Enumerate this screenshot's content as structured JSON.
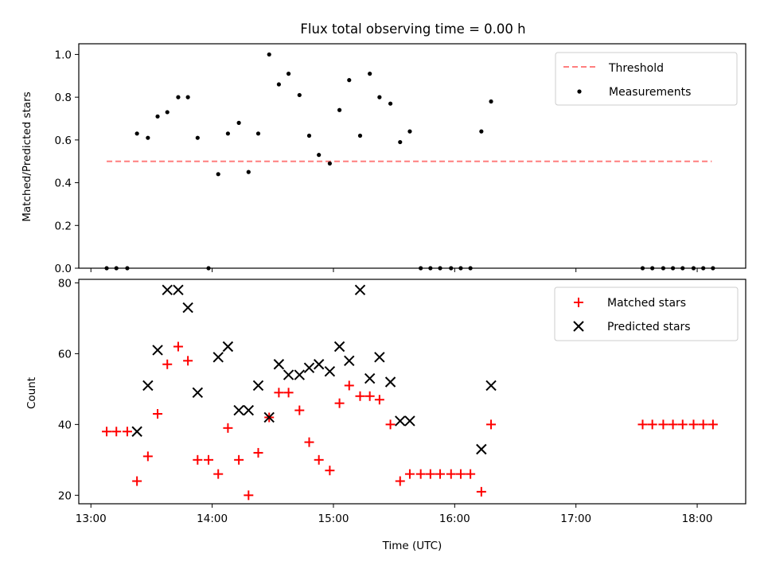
{
  "figure": {
    "title": "Flux total observing time = 0.00 h",
    "xlabel": "Time (UTC)",
    "x_ticks": [
      "13:00",
      "14:00",
      "15:00",
      "16:00",
      "17:00",
      "18:00"
    ]
  },
  "colors": {
    "threshold": "#ff7f7f",
    "measurement": "#000000",
    "matched": "#ff0000",
    "predicted": "#000000"
  },
  "chart_data": [
    {
      "type": "scatter",
      "panel": "top",
      "title": "Flux total observing time = 0.00 h",
      "ylabel": "Matched/Predicted stars",
      "xlabel": "",
      "x_unit": "hours UTC",
      "xlim": [
        12.9,
        18.4
      ],
      "ylim": [
        0,
        1.05
      ],
      "y_ticks": [
        "0.0",
        "0.2",
        "0.4",
        "0.6",
        "0.8",
        "1.0"
      ],
      "legend_position": "top-right",
      "legend": [
        "Threshold",
        "Measurements"
      ],
      "threshold": {
        "name": "Threshold",
        "y": 0.5,
        "x_range": [
          13.13,
          18.12
        ],
        "style": "dashed"
      },
      "series": [
        {
          "name": "Measurements",
          "marker": "dot",
          "x": [
            13.13,
            13.21,
            13.3,
            13.38,
            13.47,
            13.55,
            13.63,
            13.72,
            13.8,
            13.88,
            13.97,
            14.05,
            14.13,
            14.22,
            14.3,
            14.38,
            14.47,
            14.55,
            14.63,
            14.72,
            14.8,
            14.88,
            14.97,
            15.05,
            15.13,
            15.22,
            15.3,
            15.38,
            15.47,
            15.55,
            15.63,
            15.72,
            15.8,
            15.88,
            15.97,
            16.05,
            16.13,
            16.22,
            16.3,
            17.55,
            17.63,
            17.72,
            17.8,
            17.88,
            17.97,
            18.05,
            18.13
          ],
          "y": [
            0,
            0,
            0,
            0.63,
            0.61,
            0.71,
            0.73,
            0.8,
            0.8,
            0.61,
            0,
            0.44,
            0.63,
            0.68,
            0.45,
            0.63,
            1.0,
            0.86,
            0.91,
            0.81,
            0.62,
            0.53,
            0.49,
            0.74,
            0.88,
            0.62,
            0.91,
            0.8,
            0.77,
            0.59,
            0.64,
            0,
            0,
            0,
            0,
            0,
            0,
            0.64,
            0.78,
            0,
            0,
            0,
            0,
            0,
            0,
            0,
            0
          ]
        }
      ]
    },
    {
      "type": "scatter",
      "panel": "bottom",
      "title": "",
      "ylabel": "Count",
      "xlabel": "Time (UTC)",
      "x_unit": "hours UTC",
      "xlim": [
        12.9,
        18.4
      ],
      "ylim": [
        17.6,
        81
      ],
      "y_ticks": [
        "20",
        "40",
        "60",
        "80"
      ],
      "legend_position": "top-right",
      "legend": [
        "Matched stars",
        "Predicted stars"
      ],
      "series": [
        {
          "name": "Matched stars",
          "marker": "plus",
          "x": [
            13.13,
            13.21,
            13.3,
            13.38,
            13.47,
            13.55,
            13.63,
            13.72,
            13.8,
            13.88,
            13.97,
            14.05,
            14.13,
            14.22,
            14.3,
            14.38,
            14.47,
            14.55,
            14.63,
            14.72,
            14.8,
            14.88,
            14.97,
            15.05,
            15.13,
            15.22,
            15.3,
            15.38,
            15.47,
            15.55,
            15.63,
            15.72,
            15.8,
            15.88,
            15.97,
            16.05,
            16.13,
            16.22,
            16.3,
            17.55,
            17.63,
            17.72,
            17.8,
            17.88,
            17.97,
            18.05,
            18.13
          ],
          "y": [
            38,
            38,
            38,
            24,
            31,
            43,
            57,
            62,
            58,
            30,
            30,
            26,
            39,
            30,
            20,
            32,
            42,
            49,
            49,
            44,
            35,
            30,
            27,
            46,
            51,
            48,
            48,
            47,
            40,
            24,
            26,
            26,
            26,
            26,
            26,
            26,
            26,
            21,
            40,
            40,
            40,
            40,
            40,
            40,
            40,
            40,
            40
          ]
        },
        {
          "name": "Predicted stars",
          "marker": "x",
          "x": [
            13.38,
            13.47,
            13.55,
            13.63,
            13.72,
            13.8,
            13.88,
            14.05,
            14.13,
            14.22,
            14.3,
            14.38,
            14.47,
            14.55,
            14.63,
            14.72,
            14.8,
            14.88,
            14.97,
            15.05,
            15.13,
            15.22,
            15.3,
            15.38,
            15.47,
            15.55,
            15.63,
            16.22,
            16.3
          ],
          "y": [
            38,
            51,
            61,
            78,
            78,
            73,
            49,
            59,
            62,
            44,
            44,
            51,
            42,
            57,
            54,
            54,
            56,
            57,
            55,
            62,
            58,
            78,
            53,
            59,
            52,
            41,
            41,
            33,
            51
          ]
        }
      ]
    }
  ]
}
